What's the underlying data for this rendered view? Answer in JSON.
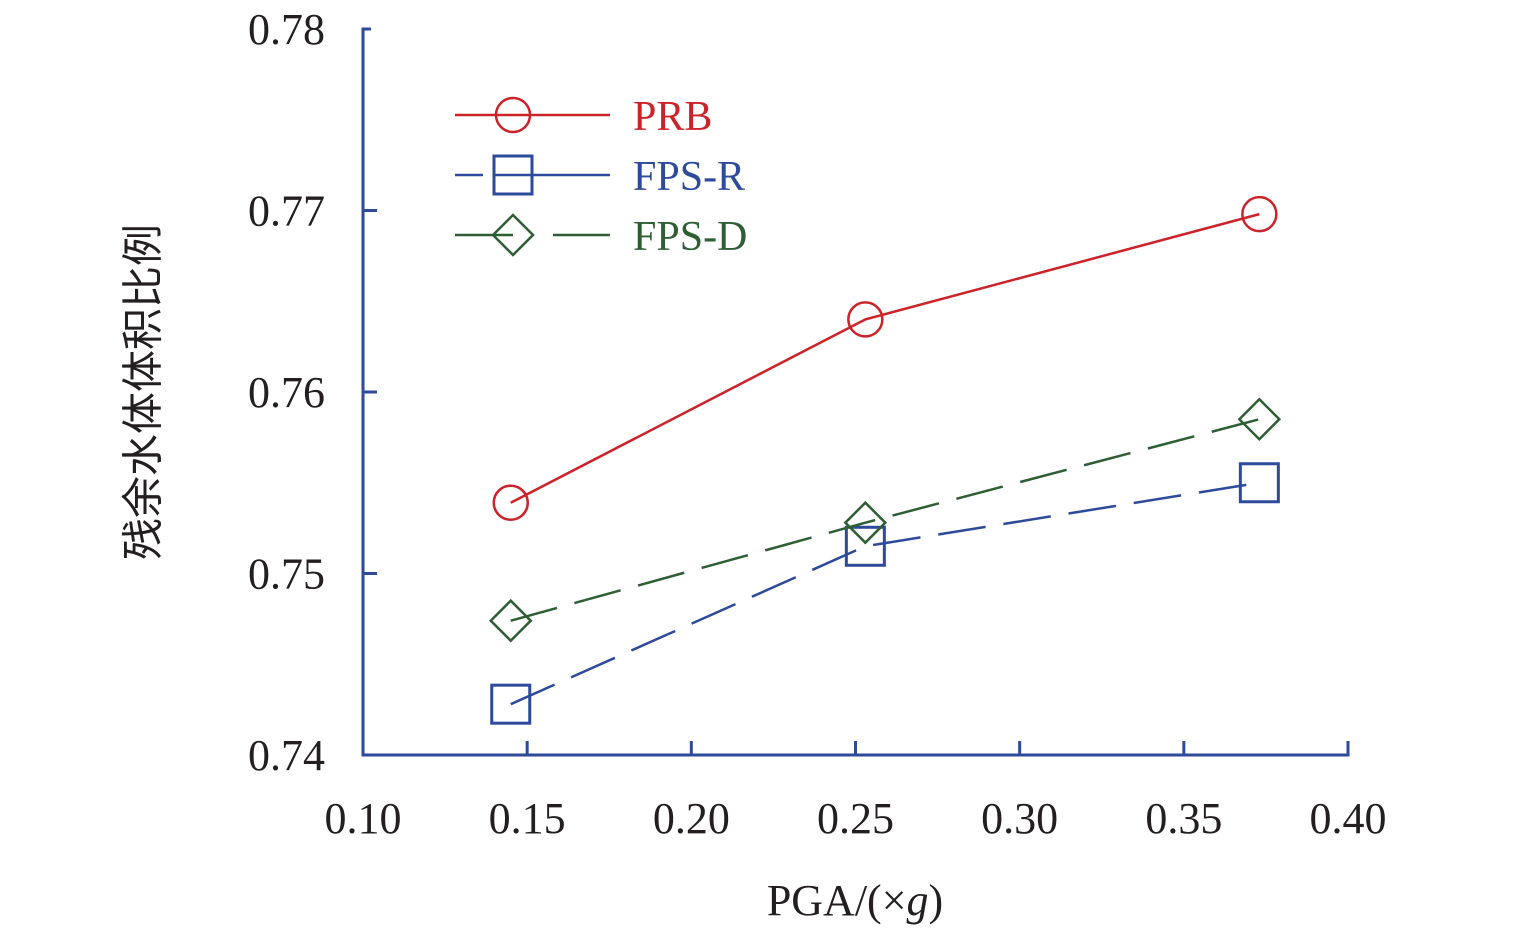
{
  "chart_data": {
    "type": "line",
    "title": "",
    "xlabel": "PGA/(×g)",
    "xlabel_parts": {
      "prefix": "PGA/(×",
      "italic": "g",
      "suffix": ")"
    },
    "ylabel": "残余水体体积比例",
    "xlim": [
      0.1,
      0.4
    ],
    "ylim": [
      0.74,
      0.78
    ],
    "xticks": [
      "0.10",
      "0.15",
      "0.20",
      "0.25",
      "0.30",
      "0.35",
      "0.40"
    ],
    "xtick_values": [
      0.1,
      0.15,
      0.2,
      0.25,
      0.3,
      0.35,
      0.4
    ],
    "yticks": [
      "0.74",
      "0.75",
      "0.76",
      "0.77",
      "0.78"
    ],
    "ytick_values": [
      0.74,
      0.75,
      0.76,
      0.77,
      0.78
    ],
    "grid": false,
    "legend_position": "top-left",
    "x": [
      0.145,
      0.253,
      0.373
    ],
    "series": [
      {
        "name": "PRB",
        "values": [
          0.7539,
          0.764,
          0.7698
        ],
        "color": "#cc2229",
        "marker": "circle",
        "line": "solid"
      },
      {
        "name": "FPS-R",
        "values": [
          0.7428,
          0.7515,
          0.755
        ],
        "color": "#2e4a9a",
        "marker": "square",
        "line": "dashed"
      },
      {
        "name": "FPS-D",
        "values": [
          0.7474,
          0.7528,
          0.7585
        ],
        "color": "#2e5e34",
        "marker": "diamond",
        "line": "dashed"
      }
    ],
    "axis_color": "#2e4a9a"
  }
}
